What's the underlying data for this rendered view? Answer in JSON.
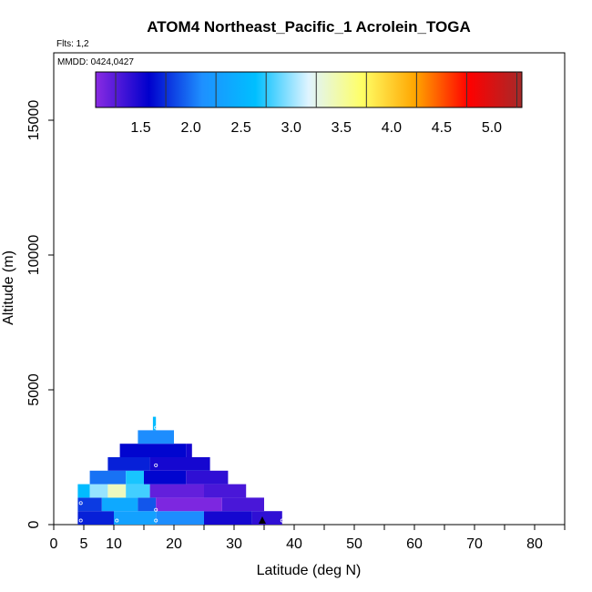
{
  "chart_data": {
    "type": "heatmap",
    "title": "ATOM4 Northeast_Pacific_1 Acrolein_TOGA",
    "flights_label": "Flts: 1,2",
    "dates_label": "MMDD: 0424,0427",
    "xlabel": "Latitude (deg N)",
    "ylabel": "Altitude (m)",
    "xlim": [
      0,
      85
    ],
    "ylim": [
      0,
      17500
    ],
    "x_ticks": [
      0,
      5,
      10,
      20,
      30,
      40,
      50,
      60,
      70,
      80
    ],
    "x_ticks_minor": [
      0,
      5,
      10,
      15,
      20,
      25,
      30,
      35,
      40,
      45,
      50,
      55,
      60,
      65,
      70,
      75,
      80,
      85
    ],
    "y_ticks": [
      0,
      5000,
      10000,
      15000
    ],
    "colorbar": {
      "ticks": [
        "1.5",
        "2.0",
        "2.5",
        "3.0",
        "3.5",
        "4.0",
        "4.5",
        "5.0"
      ],
      "tick_values": [
        1.5,
        2.0,
        2.5,
        3.0,
        3.5,
        4.0,
        4.5,
        5.0
      ],
      "range": [
        1.05,
        5.3
      ],
      "colors": [
        "#8a2be2",
        "#0000cd",
        "#1e90ff",
        "#00bfff",
        "#e0f4ff",
        "#ffff66",
        "#ffa500",
        "#ff0000",
        "#a52a2a"
      ]
    },
    "cells": [
      {
        "lat0": 4,
        "lat1": 10,
        "alt0": 0,
        "alt1": 500,
        "v": 1.7
      },
      {
        "lat0": 10,
        "lat1": 17,
        "alt0": 0,
        "alt1": 500,
        "v": 2.3
      },
      {
        "lat0": 17,
        "lat1": 25,
        "alt0": 0,
        "alt1": 500,
        "v": 2.1
      },
      {
        "lat0": 25,
        "lat1": 33,
        "alt0": 0,
        "alt1": 500,
        "v": 1.5
      },
      {
        "lat0": 33,
        "lat1": 38,
        "alt0": 0,
        "alt1": 500,
        "v": 1.4
      },
      {
        "lat0": 4,
        "lat1": 8,
        "alt0": 500,
        "alt1": 1000,
        "v": 1.8
      },
      {
        "lat0": 8,
        "lat1": 14,
        "alt0": 500,
        "alt1": 1000,
        "v": 2.4
      },
      {
        "lat0": 14,
        "lat1": 17,
        "alt0": 500,
        "alt1": 1000,
        "v": 1.9
      },
      {
        "lat0": 17,
        "lat1": 28,
        "alt0": 500,
        "alt1": 1000,
        "v": 1.1
      },
      {
        "lat0": 28,
        "lat1": 35,
        "alt0": 500,
        "alt1": 1000,
        "v": 1.3
      },
      {
        "lat0": 4,
        "lat1": 6,
        "alt0": 1000,
        "alt1": 1500,
        "v": 2.6
      },
      {
        "lat0": 6,
        "lat1": 9,
        "alt0": 1000,
        "alt1": 1500,
        "v": 3.0
      },
      {
        "lat0": 9,
        "lat1": 12,
        "alt0": 1000,
        "alt1": 1500,
        "v": 3.4
      },
      {
        "lat0": 12,
        "lat1": 16,
        "alt0": 1000,
        "alt1": 1500,
        "v": 2.8
      },
      {
        "lat0": 16,
        "lat1": 25,
        "alt0": 1000,
        "alt1": 1500,
        "v": 1.2
      },
      {
        "lat0": 25,
        "lat1": 32,
        "alt0": 1000,
        "alt1": 1500,
        "v": 1.3
      },
      {
        "lat0": 6,
        "lat1": 12,
        "alt0": 1500,
        "alt1": 2000,
        "v": 2.0
      },
      {
        "lat0": 12,
        "lat1": 15,
        "alt0": 1500,
        "alt1": 2000,
        "v": 2.7
      },
      {
        "lat0": 15,
        "lat1": 22,
        "alt0": 1500,
        "alt1": 2000,
        "v": 1.6
      },
      {
        "lat0": 22,
        "lat1": 29,
        "alt0": 1500,
        "alt1": 2000,
        "v": 1.4
      },
      {
        "lat0": 9,
        "lat1": 16,
        "alt0": 2000,
        "alt1": 2500,
        "v": 1.7
      },
      {
        "lat0": 16,
        "lat1": 26,
        "alt0": 2000,
        "alt1": 2500,
        "v": 1.5
      },
      {
        "lat0": 11,
        "lat1": 22,
        "alt0": 2500,
        "alt1": 3000,
        "v": 1.6
      },
      {
        "lat0": 22,
        "lat1": 23,
        "alt0": 2500,
        "alt1": 3000,
        "v": 1.5
      },
      {
        "lat0": 14,
        "lat1": 20,
        "alt0": 3000,
        "alt1": 3500,
        "v": 2.1
      },
      {
        "lat0": 16.5,
        "lat1": 17,
        "alt0": 3500,
        "alt1": 4000,
        "v": 2.6
      }
    ],
    "points": [
      {
        "lat": 4.5,
        "alt": 150
      },
      {
        "lat": 4.5,
        "alt": 800
      },
      {
        "lat": 10.5,
        "alt": 150
      },
      {
        "lat": 17,
        "alt": 150
      },
      {
        "lat": 17,
        "alt": 550
      },
      {
        "lat": 17,
        "alt": 2200
      },
      {
        "lat": 17,
        "alt": 3600
      },
      {
        "lat": 38,
        "alt": 150
      }
    ]
  }
}
